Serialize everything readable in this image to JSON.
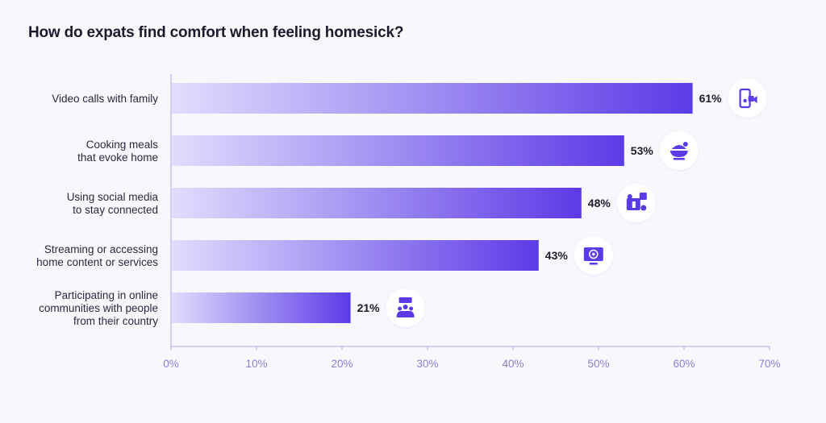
{
  "chart_data": {
    "type": "bar",
    "orientation": "horizontal",
    "title": "How do expats find comfort when feeling homesick?",
    "categories": [
      [
        "Video calls with family"
      ],
      [
        "Cooking meals",
        "that evoke home"
      ],
      [
        "Using social media",
        "to stay connected"
      ],
      [
        "Streaming or accessing",
        "home content or services"
      ],
      [
        "Participating in online",
        "communities with people",
        "from their country"
      ]
    ],
    "values": [
      61,
      53,
      48,
      43,
      21
    ],
    "value_labels": [
      "61%",
      "53%",
      "48%",
      "43%",
      "21%"
    ],
    "icons": [
      "video-call-icon",
      "cooking-bowl-icon",
      "social-media-like-icon",
      "streaming-screen-icon",
      "community-group-icon"
    ],
    "xlim": [
      0,
      70
    ],
    "xticks": [
      0,
      10,
      20,
      30,
      40,
      50,
      60,
      70
    ],
    "xtick_labels": [
      "0%",
      "10%",
      "20%",
      "30%",
      "40%",
      "50%",
      "60%",
      "70%"
    ],
    "xlabel": "",
    "ylabel": "",
    "grid": false,
    "colors": {
      "bar_start": "#e2dcfd",
      "bar_end": "#5b3be6",
      "axis": "#c8c0f2",
      "icon": "#5b3be6"
    }
  }
}
